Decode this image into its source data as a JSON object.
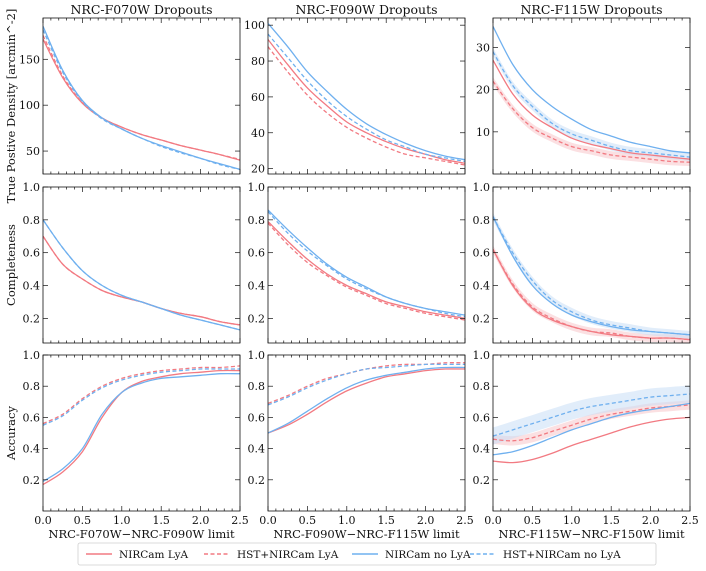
{
  "figure": {
    "legend": [
      {
        "label": "NIRCam LyA",
        "color": "#f27a82",
        "dash": false
      },
      {
        "label": "HST+NIRCam LyA",
        "color": "#f27a82",
        "dash": true
      },
      {
        "label": "NIRCam no LyA",
        "color": "#6fb0ef",
        "dash": false
      },
      {
        "label": "HST+NIRCam no LyA",
        "color": "#6fb0ef",
        "dash": true
      }
    ],
    "colors": {
      "lya": "#f27a82",
      "nolya": "#6fb0ef",
      "lya_band": "#f7c6cb",
      "nolya_band": "#c8def6"
    }
  },
  "chart_data": [
    {
      "type": "line",
      "row": 0,
      "col": 0,
      "title": "NRC-F070W Dropouts",
      "ylabel": "True Postive Density [arcmin^-2]",
      "xlabel": "",
      "xlim": [
        0,
        2.5
      ],
      "ylim": [
        25,
        195
      ],
      "yticks": [
        50,
        100,
        150
      ],
      "xticks": [
        0,
        0.5,
        1,
        1.5,
        2,
        2.5
      ],
      "show_xticklabels": false,
      "x": [
        0,
        0.25,
        0.5,
        0.75,
        1,
        1.25,
        1.5,
        1.75,
        2,
        2.25,
        2.5
      ],
      "series": [
        {
          "name": "NIRCam LyA",
          "values": [
            172,
            130,
            102,
            86,
            76,
            68,
            62,
            56,
            51,
            46,
            40
          ]
        },
        {
          "name": "HST+NIRCam LyA",
          "values": [
            176,
            132,
            103,
            86,
            76,
            68,
            62,
            56,
            51,
            46,
            41
          ]
        },
        {
          "name": "NIRCam no LyA",
          "values": [
            186,
            138,
            105,
            86,
            74,
            64,
            56,
            49,
            42,
            36,
            30
          ]
        },
        {
          "name": "HST+NIRCam no LyA",
          "values": [
            182,
            136,
            104,
            85,
            74,
            64,
            55,
            48,
            42,
            35,
            30
          ]
        }
      ]
    },
    {
      "type": "line",
      "row": 0,
      "col": 1,
      "title": "NRC-F090W Dropouts",
      "ylabel": "",
      "xlabel": "",
      "xlim": [
        0,
        2.5
      ],
      "ylim": [
        17,
        104
      ],
      "yticks": [
        20,
        40,
        60,
        80,
        100
      ],
      "xticks": [
        0,
        0.5,
        1,
        1.5,
        2,
        2.5
      ],
      "show_xticklabels": false,
      "x": [
        0,
        0.25,
        0.5,
        0.75,
        1,
        1.25,
        1.5,
        1.75,
        2,
        2.25,
        2.5
      ],
      "series": [
        {
          "name": "NIRCam LyA",
          "values": [
            92,
            78,
            65,
            55,
            46,
            40,
            35,
            31,
            28,
            25,
            23
          ]
        },
        {
          "name": "HST+NIRCam LyA",
          "values": [
            88,
            74,
            61,
            51,
            43,
            37,
            32,
            28,
            26,
            24,
            22
          ]
        },
        {
          "name": "NIRCam no LyA",
          "values": [
            101,
            88,
            74,
            63,
            53,
            45,
            39,
            34,
            30,
            27,
            25
          ]
        },
        {
          "name": "HST+NIRCam no LyA",
          "values": [
            95,
            82,
            69,
            58,
            49,
            42,
            36,
            32,
            28,
            26,
            24
          ]
        }
      ]
    },
    {
      "type": "line",
      "row": 0,
      "col": 2,
      "title": "NRC-F115W Dropouts",
      "ylabel": "",
      "xlabel": "",
      "xlim": [
        0,
        2.5
      ],
      "ylim": [
        0,
        37
      ],
      "yticks": [
        10,
        20,
        30
      ],
      "xticks": [
        0,
        0.5,
        1,
        1.5,
        2,
        2.5
      ],
      "show_xticklabels": false,
      "x": [
        0,
        0.25,
        0.5,
        0.75,
        1,
        1.25,
        1.5,
        1.75,
        2,
        2.25,
        2.5
      ],
      "series": [
        {
          "name": "NIRCam LyA",
          "values": [
            27,
            19,
            14,
            11,
            8.5,
            7,
            6,
            5,
            4.5,
            4,
            3.5
          ]
        },
        {
          "name": "HST+NIRCam LyA",
          "values": [
            22,
            15.5,
            11,
            8.5,
            6.5,
            5.5,
            4.5,
            4,
            3.5,
            3,
            2.8
          ]
        },
        {
          "name": "NIRCam no LyA",
          "values": [
            35,
            26,
            20,
            16,
            13,
            10.5,
            9,
            7.5,
            6.5,
            5.5,
            5
          ]
        },
        {
          "name": "HST+NIRCam no LyA",
          "values": [
            29,
            21,
            16,
            12,
            9.5,
            8,
            6.5,
            5.5,
            5,
            4.5,
            4
          ]
        }
      ]
    },
    {
      "type": "line",
      "row": 1,
      "col": 0,
      "title": "",
      "ylabel": "Completeness",
      "xlabel": "",
      "xlim": [
        0,
        2.5
      ],
      "ylim": [
        0.05,
        1.0
      ],
      "yticks": [
        0.2,
        0.4,
        0.6,
        0.8,
        1.0
      ],
      "xticks": [
        0,
        0.5,
        1,
        1.5,
        2,
        2.5
      ],
      "show_xticklabels": false,
      "x": [
        0,
        0.25,
        0.5,
        0.75,
        1,
        1.25,
        1.5,
        1.75,
        2,
        2.25,
        2.5
      ],
      "series": [
        {
          "name": "NIRCam LyA",
          "values": [
            0.7,
            0.53,
            0.44,
            0.37,
            0.33,
            0.3,
            0.26,
            0.23,
            0.21,
            0.18,
            0.16
          ]
        },
        {
          "name": "HST+NIRCam LyA",
          "values": [
            0.7,
            0.53,
            0.44,
            0.37,
            0.33,
            0.3,
            0.26,
            0.23,
            0.21,
            0.18,
            0.16
          ]
        },
        {
          "name": "NIRCam no LyA",
          "values": [
            0.8,
            0.63,
            0.49,
            0.4,
            0.34,
            0.3,
            0.26,
            0.22,
            0.19,
            0.16,
            0.13
          ]
        },
        {
          "name": "HST+NIRCam no LyA",
          "values": [
            0.8,
            0.63,
            0.49,
            0.4,
            0.34,
            0.3,
            0.26,
            0.22,
            0.19,
            0.16,
            0.13
          ]
        }
      ]
    },
    {
      "type": "line",
      "row": 1,
      "col": 1,
      "title": "",
      "ylabel": "",
      "xlabel": "",
      "xlim": [
        0,
        2.5
      ],
      "ylim": [
        0.05,
        1.0
      ],
      "yticks": [
        0.2,
        0.4,
        0.6,
        0.8,
        1.0
      ],
      "xticks": [
        0,
        0.5,
        1,
        1.5,
        2,
        2.5
      ],
      "show_xticklabels": false,
      "x": [
        0,
        0.25,
        0.5,
        0.75,
        1,
        1.25,
        1.5,
        1.75,
        2,
        2.25,
        2.5
      ],
      "series": [
        {
          "name": "NIRCam LyA",
          "values": [
            0.79,
            0.67,
            0.56,
            0.47,
            0.4,
            0.35,
            0.3,
            0.27,
            0.24,
            0.22,
            0.2
          ]
        },
        {
          "name": "HST+NIRCam LyA",
          "values": [
            0.78,
            0.65,
            0.54,
            0.46,
            0.39,
            0.34,
            0.29,
            0.26,
            0.23,
            0.21,
            0.19
          ]
        },
        {
          "name": "NIRCam no LyA",
          "values": [
            0.86,
            0.74,
            0.63,
            0.53,
            0.45,
            0.39,
            0.33,
            0.29,
            0.26,
            0.24,
            0.22
          ]
        },
        {
          "name": "HST+NIRCam no LyA",
          "values": [
            0.85,
            0.72,
            0.61,
            0.52,
            0.44,
            0.38,
            0.33,
            0.29,
            0.26,
            0.23,
            0.21
          ]
        }
      ]
    },
    {
      "type": "line",
      "row": 1,
      "col": 2,
      "title": "",
      "ylabel": "",
      "xlabel": "",
      "xlim": [
        0,
        2.5
      ],
      "ylim": [
        0.05,
        1.0
      ],
      "yticks": [
        0.2,
        0.4,
        0.6,
        0.8,
        1.0
      ],
      "xticks": [
        0,
        0.5,
        1,
        1.5,
        2,
        2.5
      ],
      "show_xticklabels": false,
      "x": [
        0,
        0.25,
        0.5,
        0.75,
        1,
        1.25,
        1.5,
        1.75,
        2,
        2.25,
        2.5
      ],
      "series": [
        {
          "name": "NIRCam LyA",
          "values": [
            0.62,
            0.4,
            0.26,
            0.19,
            0.15,
            0.12,
            0.1,
            0.09,
            0.08,
            0.08,
            0.07
          ]
        },
        {
          "name": "HST+NIRCam LyA",
          "values": [
            0.62,
            0.41,
            0.27,
            0.2,
            0.15,
            0.12,
            0.11,
            0.09,
            0.08,
            0.08,
            0.07
          ]
        },
        {
          "name": "NIRCam no LyA",
          "values": [
            0.82,
            0.58,
            0.4,
            0.29,
            0.22,
            0.18,
            0.15,
            0.13,
            0.12,
            0.11,
            0.1
          ]
        },
        {
          "name": "HST+NIRCam no LyA",
          "values": [
            0.82,
            0.6,
            0.43,
            0.31,
            0.24,
            0.19,
            0.16,
            0.14,
            0.12,
            0.11,
            0.1
          ]
        }
      ]
    },
    {
      "type": "line",
      "row": 2,
      "col": 0,
      "title": "",
      "ylabel": "Accuracy",
      "xlabel": "NRC-F070W−NRC-F090W limit",
      "xlim": [
        0,
        2.5
      ],
      "ylim": [
        0,
        1.0
      ],
      "yticks": [
        0.2,
        0.4,
        0.6,
        0.8,
        1.0
      ],
      "xticks": [
        0,
        0.5,
        1,
        1.5,
        2,
        2.5
      ],
      "show_xticklabels": true,
      "x": [
        0,
        0.25,
        0.5,
        0.75,
        1,
        1.25,
        1.5,
        1.75,
        2,
        2.25,
        2.5
      ],
      "series": [
        {
          "name": "NIRCam LyA",
          "values": [
            0.17,
            0.25,
            0.38,
            0.6,
            0.76,
            0.83,
            0.86,
            0.88,
            0.89,
            0.9,
            0.9
          ]
        },
        {
          "name": "HST+NIRCam LyA",
          "values": [
            0.56,
            0.62,
            0.72,
            0.8,
            0.85,
            0.88,
            0.9,
            0.91,
            0.92,
            0.92,
            0.93
          ]
        },
        {
          "name": "NIRCam no LyA",
          "values": [
            0.19,
            0.27,
            0.4,
            0.62,
            0.76,
            0.82,
            0.85,
            0.86,
            0.87,
            0.88,
            0.88
          ]
        },
        {
          "name": "HST+NIRCam no LyA",
          "values": [
            0.55,
            0.61,
            0.71,
            0.79,
            0.84,
            0.87,
            0.89,
            0.9,
            0.91,
            0.91,
            0.91
          ]
        }
      ]
    },
    {
      "type": "line",
      "row": 2,
      "col": 1,
      "title": "",
      "ylabel": "",
      "xlabel": "NRC-F090W−NRC-F115W limit",
      "xlim": [
        0,
        2.5
      ],
      "ylim": [
        0,
        1.0
      ],
      "yticks": [
        0.2,
        0.4,
        0.6,
        0.8,
        1.0
      ],
      "xticks": [
        0,
        0.5,
        1,
        1.5,
        2,
        2.5
      ],
      "show_xticklabels": true,
      "x": [
        0,
        0.25,
        0.5,
        0.75,
        1,
        1.25,
        1.5,
        1.75,
        2,
        2.25,
        2.5
      ],
      "series": [
        {
          "name": "NIRCam LyA",
          "values": [
            0.5,
            0.55,
            0.62,
            0.7,
            0.77,
            0.82,
            0.86,
            0.88,
            0.9,
            0.91,
            0.91
          ]
        },
        {
          "name": "HST+NIRCam LyA",
          "values": [
            0.69,
            0.74,
            0.8,
            0.85,
            0.88,
            0.91,
            0.93,
            0.94,
            0.94,
            0.95,
            0.95
          ]
        },
        {
          "name": "NIRCam no LyA",
          "values": [
            0.5,
            0.56,
            0.64,
            0.72,
            0.79,
            0.84,
            0.87,
            0.89,
            0.91,
            0.92,
            0.92
          ]
        },
        {
          "name": "HST+NIRCam no LyA",
          "values": [
            0.68,
            0.73,
            0.79,
            0.84,
            0.88,
            0.91,
            0.92,
            0.93,
            0.94,
            0.94,
            0.94
          ]
        }
      ]
    },
    {
      "type": "line",
      "row": 2,
      "col": 2,
      "title": "",
      "ylabel": "",
      "xlabel": "NRC-F115W−NRC-F150W limit",
      "xlim": [
        0,
        2.5
      ],
      "ylim": [
        0,
        1.0
      ],
      "yticks": [
        0.2,
        0.4,
        0.6,
        0.8,
        1.0
      ],
      "xticks": [
        0,
        0.5,
        1,
        1.5,
        2,
        2.5
      ],
      "show_xticklabels": true,
      "x": [
        0,
        0.25,
        0.5,
        0.75,
        1,
        1.25,
        1.5,
        1.75,
        2,
        2.25,
        2.5
      ],
      "series": [
        {
          "name": "NIRCam LyA",
          "values": [
            0.32,
            0.31,
            0.33,
            0.37,
            0.42,
            0.46,
            0.5,
            0.54,
            0.57,
            0.59,
            0.6
          ]
        },
        {
          "name": "HST+NIRCam LyA",
          "values": [
            0.46,
            0.45,
            0.47,
            0.51,
            0.55,
            0.59,
            0.62,
            0.64,
            0.66,
            0.67,
            0.68
          ]
        },
        {
          "name": "NIRCam no LyA",
          "values": [
            0.36,
            0.38,
            0.42,
            0.47,
            0.52,
            0.56,
            0.6,
            0.63,
            0.65,
            0.67,
            0.69
          ]
        },
        {
          "name": "HST+NIRCam no LyA",
          "values": [
            0.48,
            0.52,
            0.56,
            0.6,
            0.64,
            0.67,
            0.69,
            0.71,
            0.73,
            0.74,
            0.75
          ]
        }
      ]
    }
  ]
}
